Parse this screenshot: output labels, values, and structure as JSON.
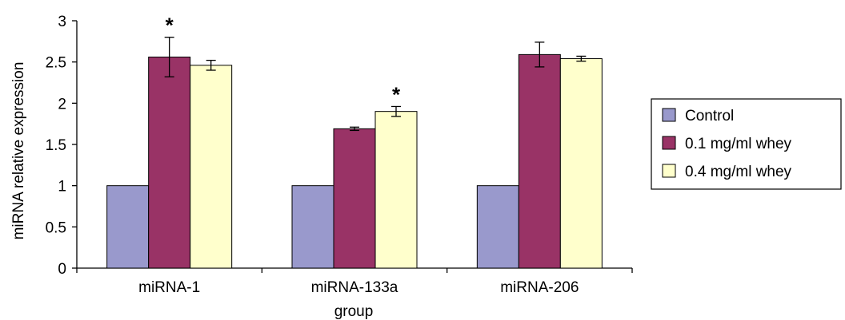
{
  "chart_data": {
    "type": "bar",
    "title": "",
    "xlabel": "group",
    "ylabel": "miRNA relative expression",
    "ylim": [
      0,
      3
    ],
    "yticks": [
      "0",
      "0.5",
      "1",
      "1.5",
      "2",
      "2.5",
      "3"
    ],
    "categories": [
      "miRNA-1",
      "miRNA-133a",
      "miRNA-206"
    ],
    "series": [
      {
        "name": "Control",
        "color": "#9999cc",
        "values": [
          1,
          1,
          1
        ],
        "errors": [
          0,
          0,
          0
        ]
      },
      {
        "name": "0.1 mg/ml whey",
        "color": "#993366",
        "values": [
          2.56,
          1.69,
          2.59
        ],
        "errors": [
          0.24,
          0.02,
          0.15
        ]
      },
      {
        "name": "0.4 mg/ml whey",
        "color": "#ffffcc",
        "values": [
          2.46,
          1.9,
          2.54
        ],
        "errors": [
          0.06,
          0.06,
          0.03
        ]
      }
    ],
    "annotations": [
      {
        "text": "*",
        "category": "miRNA-1",
        "series": "0.1 mg/ml whey"
      },
      {
        "text": "*",
        "category": "miRNA-133a",
        "series": "0.4 mg/ml whey"
      }
    ],
    "legend_position": "right",
    "grid": false
  }
}
